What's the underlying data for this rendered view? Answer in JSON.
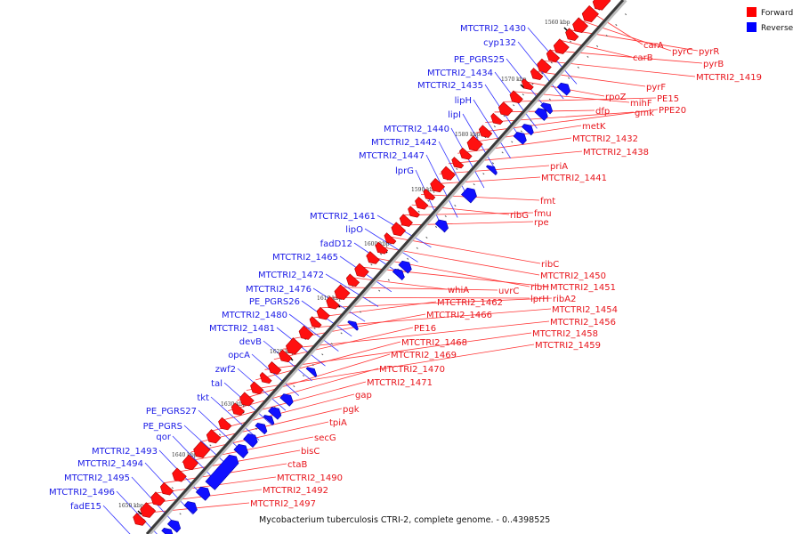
{
  "title": "Mycobacterium tuberculosis CTRI-2, complete genome. - 0..4398525",
  "legend": [
    {
      "label": "Forward",
      "color": "#ff0000"
    },
    {
      "label": "Reverse",
      "color": "#0000ff"
    }
  ],
  "kbp_marks": [
    "1560 kbp",
    "1570 kbp",
    "1580 kbp",
    "1590 kbp",
    "1600 kbp",
    "1610 kbp",
    "1620 kbp",
    "1630 kbp",
    "1640 kbp",
    "1650 kbp"
  ],
  "forward_labels": [
    "carA",
    "pyrC",
    "pyrR",
    "carB",
    "pyrB",
    "MTCTRI2_1419",
    "pyrF",
    "rpoZ",
    "mihF",
    "PE15",
    "dfp",
    "gmk",
    "PPE20",
    "metK",
    "MTCTRI2_1432",
    "MTCTRI2_1438",
    "priA",
    "MTCTRI2_1441",
    "fmt",
    "ribG",
    "fmu",
    "rpe",
    "ribC",
    "MTCTRI2_1450",
    "ribH",
    "MTCTRI2_1451",
    "whiA",
    "uvrC",
    "lprH",
    "ribA2",
    "MTCTRI2_1462",
    "MTCTRI2_1454",
    "MTCTRI2_1466",
    "MTCTRI2_1456",
    "PE16",
    "MTCTRI2_1458",
    "MTCTRI2_1468",
    "MTCTRI2_1459",
    "MTCTRI2_1469",
    "MTCTRI2_1470",
    "MTCTRI2_1471",
    "gap",
    "pgk",
    "tpiA",
    "secG",
    "bisC",
    "ctaB",
    "MTCTRI2_1490",
    "MTCTRI2_1492",
    "MTCTRI2_1497"
  ],
  "reverse_labels": [
    "MTCTRI2_1430",
    "cyp132",
    "PE_PGRS25",
    "MTCTRI2_1434",
    "MTCTRI2_1435",
    "lipH",
    "lipI",
    "MTCTRI2_1440",
    "MTCTRI2_1442",
    "MTCTRI2_1447",
    "lprG",
    "MTCTRI2_1461",
    "lipO",
    "fadD12",
    "MTCTRI2_1465",
    "MTCTRI2_1472",
    "MTCTRI2_1476",
    "PE_PGRS26",
    "MTCTRI2_1480",
    "MTCTRI2_1481",
    "devB",
    "opcA",
    "zwf2",
    "tal",
    "tkt",
    "PE_PGRS27",
    "PE_PGRS",
    "qor",
    "MTCTRI2_1493",
    "MTCTRI2_1494",
    "MTCTRI2_1495",
    "MTCTRI2_1496",
    "fadE15"
  ]
}
